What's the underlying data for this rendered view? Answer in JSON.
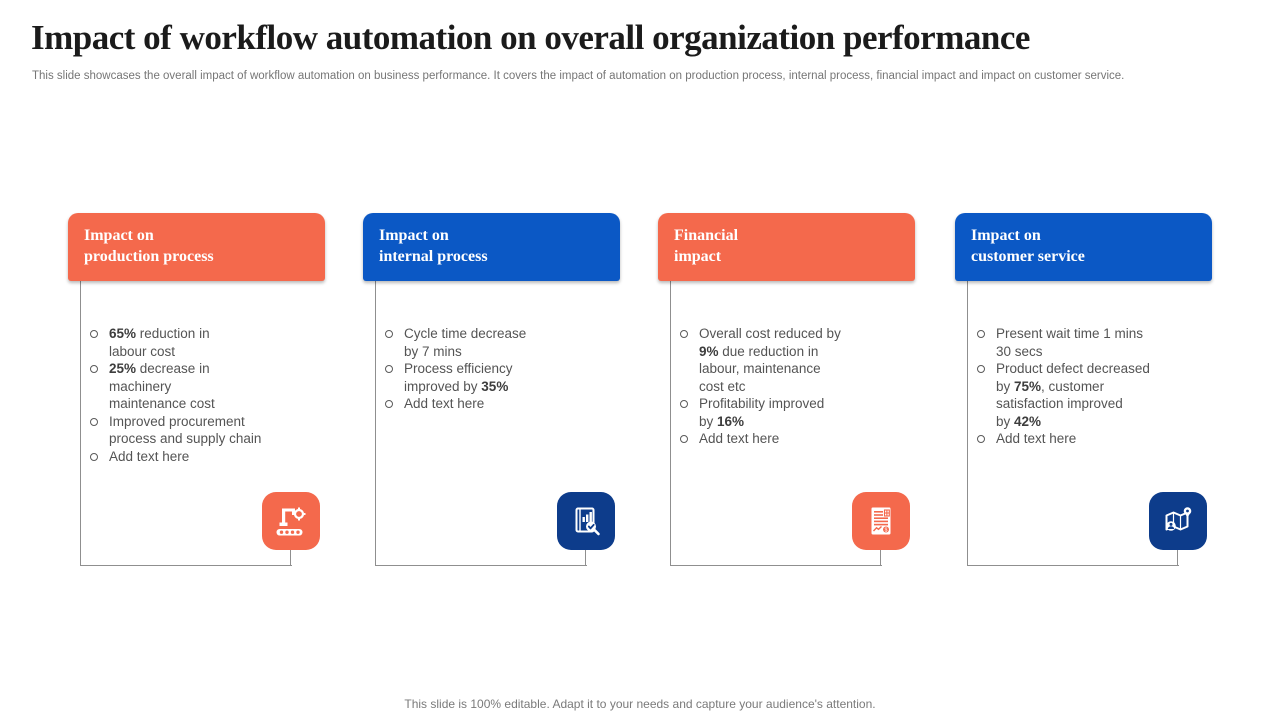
{
  "slide": {
    "title": "Impact of workflow automation on overall organization performance",
    "subtitle": "This slide showcases the overall impact of workflow automation on business performance. It covers the impact of automation on production process, internal process, financial impact and impact on customer service.",
    "footer": "This slide is 100% editable. Adapt it to your needs and capture your audience's attention."
  },
  "colors": {
    "orange": "#F4694C",
    "blue": "#0B58C5",
    "navy": "#0D3C8B",
    "line": "#8F8F8F",
    "body_text": "#545454"
  },
  "cards": [
    {
      "title": "Impact on\nproduction process",
      "header_color": "orange",
      "tile_color": "orange",
      "icon": "robotic-arm-icon",
      "bullets": [
        {
          "segments": [
            {
              "t": "65%",
              "b": true
            },
            {
              "t": " reduction in\nlabour cost",
              "b": false
            }
          ]
        },
        {
          "segments": [
            {
              "t": "25%",
              "b": true
            },
            {
              "t": " decrease in\nmachinery\nmaintenance cost",
              "b": false
            }
          ]
        },
        {
          "segments": [
            {
              "t": "Improved procurement\nprocess and supply chain",
              "b": false
            }
          ]
        },
        {
          "segments": [
            {
              "t": "Add text here",
              "b": false
            }
          ]
        }
      ]
    },
    {
      "title": "Impact on\ninternal process",
      "header_color": "blue",
      "tile_color": "navy",
      "icon": "report-magnifier-icon",
      "bullets": [
        {
          "segments": [
            {
              "t": "Cycle time decrease\nby 7 mins",
              "b": false
            }
          ]
        },
        {
          "segments": [
            {
              "t": "Process efficiency\nimproved by ",
              "b": false
            },
            {
              "t": "35%",
              "b": true
            }
          ]
        },
        {
          "segments": [
            {
              "t": "Add text here",
              "b": false
            }
          ]
        }
      ]
    },
    {
      "title": "Financial\nimpact",
      "header_color": "orange",
      "tile_color": "orange",
      "icon": "financial-report-icon",
      "bullets": [
        {
          "segments": [
            {
              "t": "Overall cost reduced by\n",
              "b": false
            },
            {
              "t": "9%",
              "b": true
            },
            {
              "t": " due reduction in\nlabour, maintenance\ncost etc",
              "b": false
            }
          ]
        },
        {
          "segments": [
            {
              "t": "Profitability improved\nby ",
              "b": false
            },
            {
              "t": "16%",
              "b": true
            }
          ]
        },
        {
          "segments": [
            {
              "t": "Add text here",
              "b": false
            }
          ]
        }
      ]
    },
    {
      "title": "Impact on\ncustomer service",
      "header_color": "blue",
      "tile_color": "navy",
      "icon": "map-location-icon",
      "bullets": [
        {
          "segments": [
            {
              "t": "Present wait time 1 mins\n30 secs",
              "b": false
            }
          ]
        },
        {
          "segments": [
            {
              "t": "Product defect decreased\nby ",
              "b": false
            },
            {
              "t": "75%",
              "b": true
            },
            {
              "t": ", customer\nsatisfaction improved\nby ",
              "b": false
            },
            {
              "t": "42%",
              "b": true
            }
          ]
        },
        {
          "segments": [
            {
              "t": "Add text here",
              "b": false
            }
          ]
        }
      ]
    }
  ]
}
